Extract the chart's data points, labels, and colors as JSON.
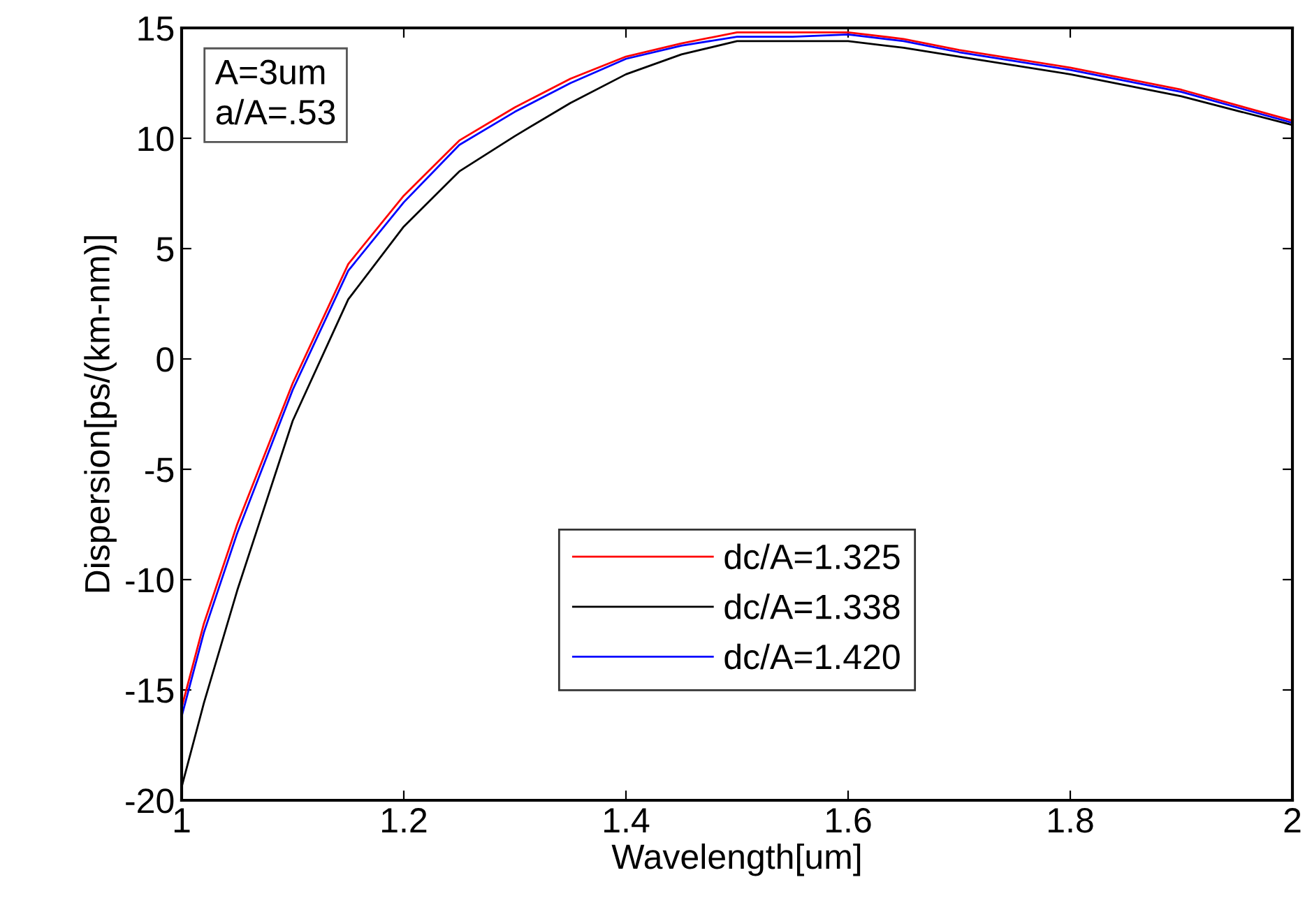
{
  "chart_data": {
    "type": "line",
    "xlabel": "Wavelength[um]",
    "ylabel": "Dispersion[ps/(km-nm)]",
    "x": [
      1,
      1.02,
      1.05,
      1.1,
      1.15,
      1.2,
      1.25,
      1.3,
      1.35,
      1.4,
      1.45,
      1.5,
      1.55,
      1.6,
      1.65,
      1.7,
      1.8,
      1.9,
      2
    ],
    "series": [
      {
        "name": "dc/A=1.325",
        "color": "#ff0000",
        "values": [
          -15.8,
          -12.0,
          -7.5,
          -1.1,
          4.3,
          7.4,
          9.9,
          11.4,
          12.7,
          13.7,
          14.3,
          14.8,
          14.8,
          14.8,
          14.5,
          14.0,
          13.2,
          12.2,
          10.8
        ]
      },
      {
        "name": "dc/A=1.338",
        "color": "#000000",
        "values": [
          -19.4,
          -15.6,
          -10.5,
          -2.8,
          2.7,
          6.0,
          8.5,
          10.1,
          11.6,
          12.9,
          13.8,
          14.4,
          14.4,
          14.4,
          14.1,
          13.7,
          12.9,
          11.9,
          10.6
        ]
      },
      {
        "name": "dc/A=1.420",
        "color": "#0000ff",
        "values": [
          -16.2,
          -12.4,
          -7.9,
          -1.4,
          4.0,
          7.1,
          9.7,
          11.2,
          12.5,
          13.6,
          14.2,
          14.6,
          14.6,
          14.7,
          14.4,
          13.9,
          13.1,
          12.1,
          10.7
        ]
      }
    ],
    "xlim": [
      1,
      2
    ],
    "xticks": [
      1,
      1.2,
      1.4,
      1.6,
      1.8,
      2
    ],
    "ylim": [
      -20,
      15
    ],
    "yticks": [
      -20,
      -15,
      -10,
      -5,
      0,
      5,
      10,
      15
    ],
    "grid": false,
    "legend": "bottom",
    "annotations": [
      "A=3um\na/A=.53"
    ]
  }
}
